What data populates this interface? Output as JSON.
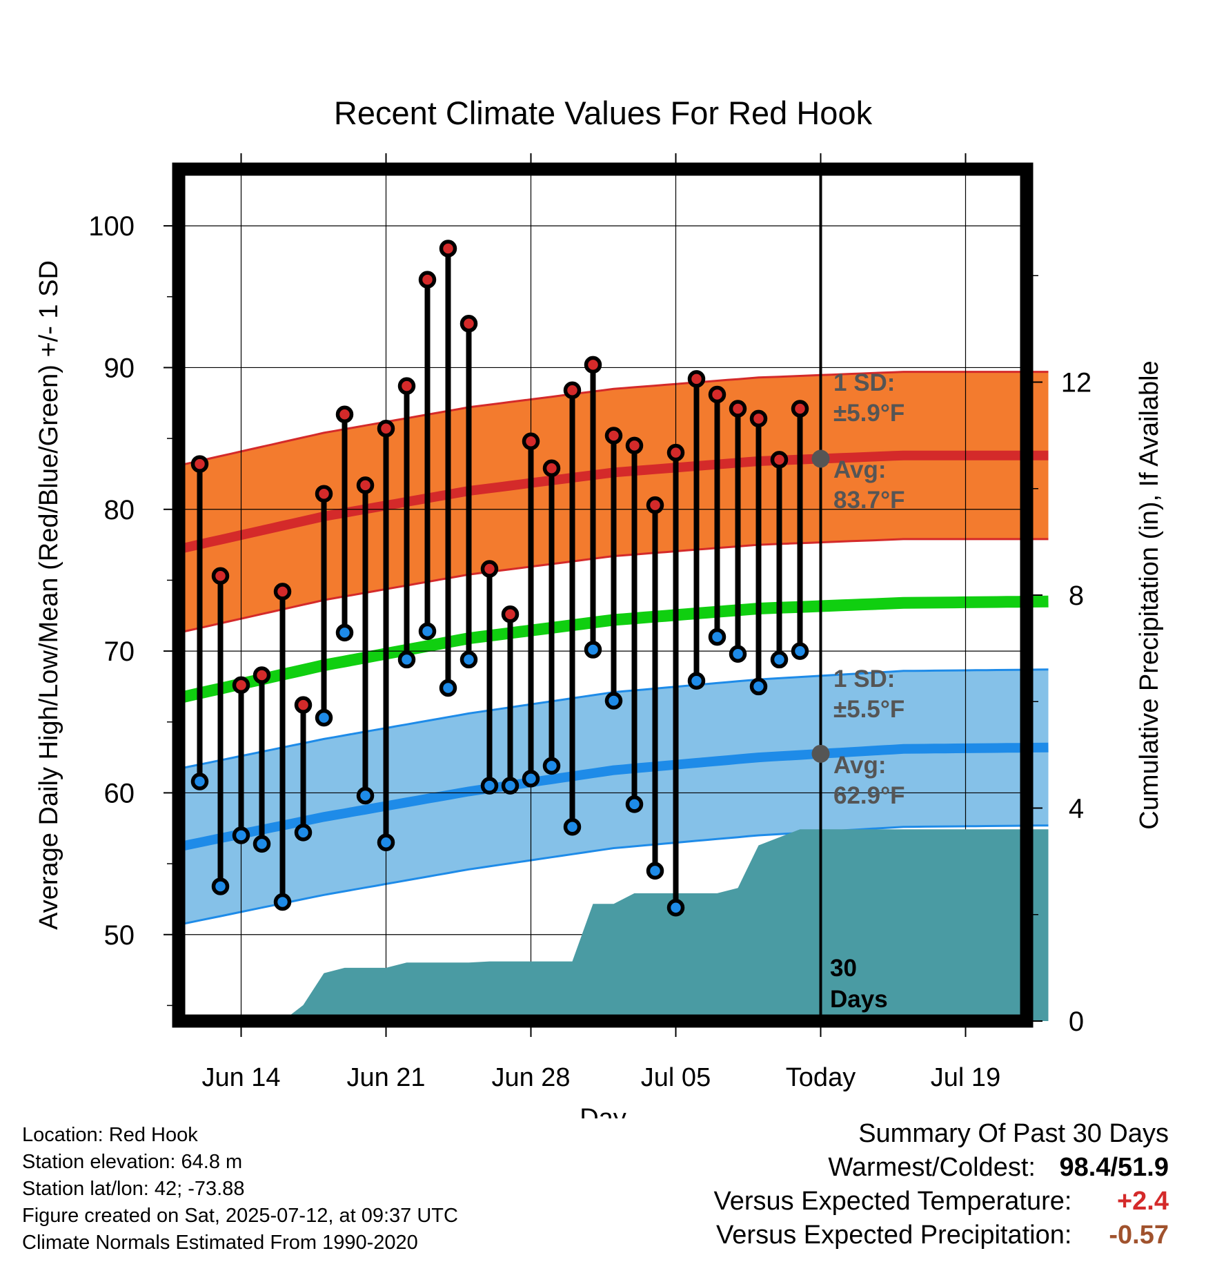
{
  "chart_data": {
    "type": "line",
    "title": "Recent Climate Values For Red Hook",
    "xlabel": "Day",
    "ylabel": "Average Daily High/Low/Mean (Red/Blue/Green) +/- 1 SD",
    "y2label": "Cumulative Precipitation (in), If Available",
    "x_tick_labels": [
      "Jun 14",
      "Jun 21",
      "Jun 28",
      "Jul 05",
      "Today",
      "Jul 19"
    ],
    "y_ticks": [
      50,
      60,
      70,
      80,
      90,
      100
    ],
    "y2_ticks": [
      0,
      4,
      8,
      12
    ],
    "ylim": [
      43.9,
      104
    ],
    "y2lim": [
      0,
      16
    ],
    "grid": true,
    "days": [
      "Jun 12",
      "Jun 13",
      "Jun 14",
      "Jun 15",
      "Jun 16",
      "Jun 17",
      "Jun 18",
      "Jun 19",
      "Jun 20",
      "Jun 21",
      "Jun 22",
      "Jun 23",
      "Jun 24",
      "Jun 25",
      "Jun 26",
      "Jun 27",
      "Jun 28",
      "Jun 29",
      "Jun 30",
      "Jul 01",
      "Jul 02",
      "Jul 03",
      "Jul 04",
      "Jul 05",
      "Jul 06",
      "Jul 07",
      "Jul 08",
      "Jul 09",
      "Jul 10",
      "Jul 11"
    ],
    "series": [
      {
        "name": "High",
        "values": [
          83.2,
          75.3,
          67.6,
          68.3,
          74.2,
          66.2,
          81.1,
          86.7,
          81.7,
          85.7,
          88.7,
          96.2,
          98.4,
          93.1,
          75.8,
          72.6,
          84.8,
          82.9,
          88.4,
          90.2,
          85.2,
          84.5,
          80.3,
          84.0,
          89.2,
          88.1,
          87.1,
          86.4,
          83.5,
          87.1
        ]
      },
      {
        "name": "Low",
        "values": [
          60.8,
          53.4,
          57.0,
          56.4,
          52.3,
          57.2,
          65.3,
          71.3,
          59.8,
          56.5,
          69.4,
          71.4,
          67.4,
          69.4,
          60.5,
          60.5,
          61.0,
          61.9,
          57.6,
          70.1,
          66.5,
          59.2,
          54.5,
          51.9,
          67.9,
          71.0,
          69.8,
          67.5,
          69.4,
          70.0
        ]
      }
    ],
    "normals": {
      "dates": [
        "Jun 11",
        "Jun 18",
        "Jun 25",
        "Jul 02",
        "Jul 09",
        "Jul 16",
        "Jul 23"
      ],
      "high_avg": [
        77.2,
        79.5,
        81.3,
        82.6,
        83.4,
        83.8,
        83.8
      ],
      "low_avg": [
        56.2,
        58.3,
        60.1,
        61.6,
        62.5,
        63.1,
        63.2
      ],
      "mean_avg": [
        66.7,
        69.0,
        70.9,
        72.2,
        73.0,
        73.4,
        73.5
      ],
      "high_sd": 5.9,
      "low_sd": 5.5
    },
    "precip": {
      "dates": [
        "Jun 12",
        "Jun 13",
        "Jun 14",
        "Jun 15",
        "Jun 16",
        "Jun 17",
        "Jun 18",
        "Jun 19",
        "Jun 20",
        "Jun 21",
        "Jun 22",
        "Jun 23",
        "Jun 24",
        "Jun 25",
        "Jun 26",
        "Jun 27",
        "Jun 28",
        "Jun 29",
        "Jun 30",
        "Jul 01",
        "Jul 02",
        "Jul 03",
        "Jul 04",
        "Jul 05",
        "Jul 06",
        "Jul 07",
        "Jul 08",
        "Jul 09",
        "Jul 10",
        "Jul 11",
        "Jul 23"
      ],
      "values": [
        0,
        0,
        0,
        0,
        0,
        0.3,
        0.9,
        1.0,
        1.0,
        1.0,
        1.1,
        1.1,
        1.1,
        1.1,
        1.12,
        1.12,
        1.12,
        1.12,
        1.12,
        2.2,
        2.2,
        2.4,
        2.4,
        2.4,
        2.4,
        2.4,
        2.5,
        3.3,
        3.45,
        3.6,
        3.6
      ]
    },
    "annotations": {
      "today": "Today",
      "window_line1": "30",
      "window_line2": "Days",
      "high_sd_label": "1 SD:",
      "high_sd_value": "±5.9°F",
      "high_avg_label": "Avg:",
      "high_avg_value": "83.7°F",
      "low_sd_label": "1 SD:",
      "low_sd_value": "±5.5°F",
      "low_avg_label": "Avg:",
      "low_avg_value": "62.9°F"
    }
  },
  "colors": {
    "high": "#d42a2a",
    "high_band": "#f37b2e",
    "low": "#1e8be8",
    "low_band": "#85c1e8",
    "mean": "#10cf10",
    "precip": "#4a9ba3",
    "annotation": "#555555"
  },
  "station": {
    "location": "Location: Red Hook",
    "elevation": "Station elevation: 64.8 m",
    "latlon": "Station lat/lon: 42; -73.88",
    "created": "Figure created on Sat, 2025-07-12, at 09:37 UTC",
    "normals": "Climate Normals Estimated From 1990-2020"
  },
  "summary": {
    "title": "Summary Of Past 30 Days",
    "warm_cold_label": "Warmest/Coldest:",
    "warm_cold_value": "98.4/51.9",
    "temp_label": "Versus Expected Temperature:",
    "temp_value": "+2.4",
    "precip_label": "Versus Expected Precipitation:",
    "precip_value": "-0.57"
  }
}
